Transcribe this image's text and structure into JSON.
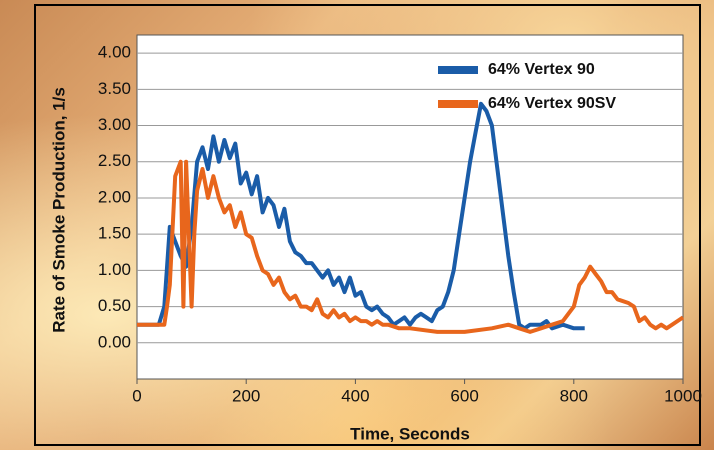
{
  "chart_data": {
    "type": "line",
    "x_label": "Time, Seconds",
    "y_label": "Rate of Smoke Production, 1/s",
    "xlim": [
      0,
      1000
    ],
    "ylim": [
      -0.5,
      4.25
    ],
    "xticks": [
      0,
      200,
      400,
      600,
      800,
      1000
    ],
    "yticks": [
      {
        "value": 0,
        "label": "0.00"
      },
      {
        "value": 0.5,
        "label": "0.50"
      },
      {
        "value": 1,
        "label": "1.00"
      },
      {
        "value": 1.5,
        "label": "1.50"
      },
      {
        "value": 2,
        "label": "2.00"
      },
      {
        "value": 2.5,
        "label": "2.50"
      },
      {
        "value": 3,
        "label": "3.00"
      },
      {
        "value": 3.5,
        "label": "3.50"
      },
      {
        "value": 4,
        "label": "4.00"
      }
    ],
    "grid": true,
    "legend": "upper right",
    "series": [
      {
        "name": "64% Vertex 90",
        "color": "#1a5ca8",
        "x": [
          0,
          20,
          40,
          50,
          60,
          70,
          80,
          90,
          100,
          110,
          120,
          130,
          140,
          150,
          160,
          170,
          180,
          190,
          200,
          210,
          220,
          230,
          240,
          250,
          260,
          270,
          280,
          290,
          300,
          310,
          320,
          330,
          340,
          350,
          360,
          370,
          380,
          390,
          400,
          410,
          420,
          430,
          440,
          450,
          460,
          470,
          480,
          490,
          500,
          510,
          520,
          530,
          540,
          550,
          560,
          570,
          580,
          590,
          600,
          610,
          620,
          630,
          640,
          650,
          660,
          670,
          680,
          690,
          700,
          710,
          720,
          740,
          750,
          760,
          780,
          800,
          820
        ],
        "values": [
          0.25,
          0.25,
          0.25,
          0.5,
          1.6,
          1.4,
          1.2,
          1.05,
          1.6,
          2.5,
          2.7,
          2.4,
          2.85,
          2.5,
          2.8,
          2.55,
          2.75,
          2.2,
          2.35,
          2.05,
          2.3,
          1.8,
          2.0,
          1.9,
          1.6,
          1.85,
          1.4,
          1.25,
          1.2,
          1.1,
          1.1,
          1.0,
          0.9,
          1.0,
          0.8,
          0.9,
          0.7,
          0.9,
          0.65,
          0.7,
          0.5,
          0.45,
          0.5,
          0.4,
          0.35,
          0.25,
          0.3,
          0.35,
          0.25,
          0.35,
          0.4,
          0.35,
          0.3,
          0.45,
          0.5,
          0.7,
          1.0,
          1.5,
          2.0,
          2.5,
          2.9,
          3.3,
          3.2,
          3.0,
          2.4,
          1.8,
          1.2,
          0.7,
          0.25,
          0.2,
          0.25,
          0.25,
          0.3,
          0.2,
          0.25,
          0.2,
          0.2
        ]
      },
      {
        "name": "64% Vertex 90SV",
        "color": "#e8661c",
        "x": [
          0,
          20,
          40,
          50,
          55,
          60,
          70,
          80,
          85,
          90,
          100,
          105,
          110,
          120,
          130,
          140,
          150,
          160,
          170,
          180,
          190,
          200,
          210,
          220,
          230,
          240,
          250,
          260,
          270,
          280,
          290,
          300,
          310,
          320,
          330,
          340,
          350,
          360,
          370,
          380,
          390,
          400,
          410,
          420,
          430,
          440,
          450,
          460,
          480,
          500,
          550,
          600,
          650,
          680,
          700,
          720,
          740,
          760,
          780,
          800,
          810,
          820,
          830,
          840,
          850,
          860,
          870,
          880,
          900,
          910,
          920,
          930,
          940,
          950,
          960,
          970,
          980,
          1000
        ],
        "values": [
          0.25,
          0.25,
          0.25,
          0.25,
          0.5,
          0.8,
          2.3,
          2.5,
          0.5,
          2.5,
          0.5,
          1.5,
          2.1,
          2.4,
          2.0,
          2.3,
          2.0,
          1.8,
          1.9,
          1.6,
          1.8,
          1.5,
          1.45,
          1.2,
          1.0,
          0.95,
          0.8,
          0.9,
          0.7,
          0.6,
          0.65,
          0.5,
          0.5,
          0.45,
          0.6,
          0.4,
          0.35,
          0.45,
          0.35,
          0.4,
          0.3,
          0.35,
          0.3,
          0.3,
          0.25,
          0.3,
          0.25,
          0.25,
          0.2,
          0.2,
          0.15,
          0.15,
          0.2,
          0.25,
          0.2,
          0.15,
          0.2,
          0.25,
          0.3,
          0.5,
          0.8,
          0.9,
          1.05,
          0.95,
          0.85,
          0.7,
          0.7,
          0.6,
          0.55,
          0.5,
          0.3,
          0.35,
          0.25,
          0.2,
          0.25,
          0.2,
          0.25,
          0.35
        ]
      }
    ]
  }
}
